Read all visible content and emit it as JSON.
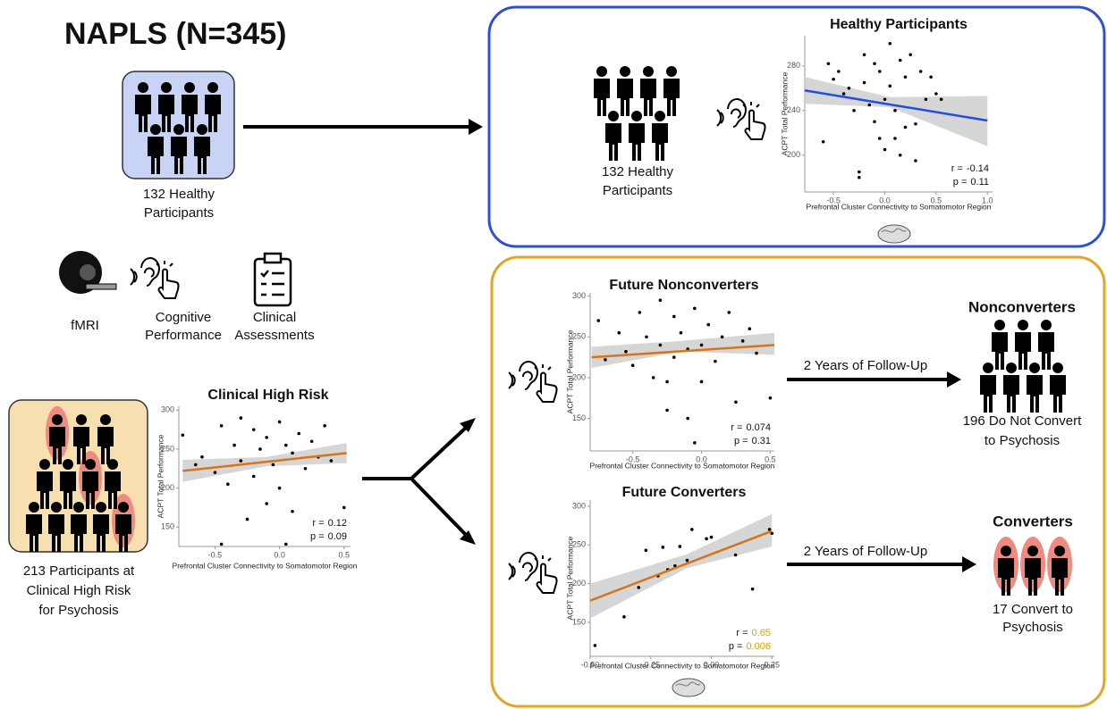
{
  "title": "NAPLS (N=345)",
  "healthy_group": {
    "lines": [
      "132 Healthy",
      "Participants"
    ]
  },
  "modalities": [
    {
      "lines": [
        "fMRI"
      ]
    },
    {
      "lines": [
        "Cognitive",
        "Performance"
      ]
    },
    {
      "lines": [
        "Clinical",
        "Assessments"
      ]
    }
  ],
  "chr_group": {
    "lines": [
      "213 Participants at",
      "Clinical High Risk",
      "for Psychosis"
    ]
  },
  "healthy_panel": {
    "lines": [
      "132 Healthy",
      "Participants"
    ]
  },
  "outcomes": [
    {
      "title": "Nonconverters",
      "arrow_label": "2 Years of Follow-Up",
      "lines": [
        "196 Do Not Convert",
        "to Psychosis"
      ]
    },
    {
      "title": "Converters",
      "arrow_label": "2 Years of Follow-Up",
      "lines": [
        "17 Convert to",
        "Psychosis"
      ]
    }
  ],
  "chart_data": [
    {
      "type": "scatter",
      "title": "Healthy Participants",
      "xlabel": "Prefrontal Cluster Connectivity to Somatomotor Region",
      "ylabel": "ACPT Total Performance",
      "color": "#000000",
      "x": [
        -0.6,
        -0.5,
        -0.45,
        -0.4,
        -0.35,
        -0.3,
        -0.25,
        -0.2,
        -0.2,
        -0.15,
        -0.1,
        -0.1,
        -0.05,
        0,
        0,
        0.05,
        0.05,
        0.1,
        0.1,
        0.15,
        0.2,
        0.2,
        0.25,
        0.3,
        0.35,
        0.4,
        0.45,
        0.5,
        -0.25,
        -0.05,
        0.15,
        0.3,
        0.55,
        -0.55
      ],
      "values": [
        212,
        268,
        275,
        255,
        260,
        240,
        180,
        290,
        265,
        245,
        282,
        230,
        275,
        250,
        205,
        300,
        262,
        240,
        215,
        285,
        270,
        225,
        290,
        195,
        275,
        250,
        270,
        255,
        185,
        215,
        200,
        228,
        250,
        282
      ],
      "fit": {
        "color": "#1f4fe0",
        "x": [
          -0.78,
          1.0
        ],
        "y": [
          258,
          231
        ]
      },
      "ci": {
        "color": "#cccccc",
        "x": [
          -0.78,
          0.05,
          1.0
        ],
        "lower": [
          246,
          243,
          208
        ],
        "upper": [
          270,
          252,
          253
        ]
      },
      "xlim": [
        -0.78,
        1.05
      ],
      "ylim": [
        167,
        307
      ],
      "xticks": [
        -0.5,
        {
          "value": 0,
          "label": "0.0"
        },
        0.5,
        {
          "value": 1,
          "label": "1.0"
        }
      ],
      "yticks": [
        200,
        240,
        280
      ],
      "annotations": [
        {
          "label": "r =",
          "value": "-0.14"
        },
        {
          "label": "p =",
          "value": "0.11"
        }
      ]
    },
    {
      "type": "scatter",
      "title": "Clinical High Risk",
      "xlabel": "Prefrontal Cluster Connectivity to Somatomotor Region",
      "ylabel": "ACPT Total Performance",
      "color": "#000000",
      "x": [
        -0.75,
        -0.65,
        -0.6,
        -0.5,
        -0.45,
        -0.4,
        -0.35,
        -0.3,
        -0.3,
        -0.25,
        -0.2,
        -0.2,
        -0.15,
        -0.1,
        -0.1,
        -0.05,
        0,
        0,
        0.05,
        0.1,
        0.1,
        0.15,
        0.2,
        0.25,
        0.3,
        0.35,
        0.4,
        0.5,
        -0.45,
        0.05
      ],
      "values": [
        268,
        230,
        240,
        220,
        280,
        205,
        255,
        290,
        235,
        160,
        275,
        215,
        250,
        180,
        265,
        230,
        285,
        200,
        255,
        245,
        170,
        270,
        225,
        260,
        240,
        280,
        235,
        175,
        128,
        128
      ],
      "fit": {
        "color": "#d9731a",
        "x": [
          -0.75,
          0.52
        ],
        "y": [
          222,
          245
        ]
      },
      "ci": {
        "color": "#cccccc",
        "x": [
          -0.75,
          -0.1,
          0.52
        ],
        "lower": [
          208,
          228,
          232
        ],
        "upper": [
          236,
          240,
          258
        ]
      },
      "xlim": [
        -0.78,
        0.55
      ],
      "ylim": [
        125,
        305
      ],
      "xticks": [
        -0.5,
        {
          "value": 0,
          "label": "0.0"
        },
        0.5
      ],
      "yticks": [
        150,
        200,
        250,
        300
      ],
      "annotations": [
        {
          "label": "r =",
          "value": "0.12"
        },
        {
          "label": "p =",
          "value": "0.09"
        }
      ]
    },
    {
      "type": "scatter",
      "title": "Future Nonconverters",
      "xlabel": "Prefrontal Cluster Connectivity to Somatomotor Region",
      "ylabel": "ACPT Total Performance",
      "color": "#000000",
      "x": [
        -0.75,
        -0.7,
        -0.6,
        -0.55,
        -0.5,
        -0.45,
        -0.4,
        -0.35,
        -0.3,
        -0.3,
        -0.25,
        -0.2,
        -0.2,
        -0.15,
        -0.1,
        -0.1,
        -0.05,
        0,
        0,
        0.05,
        0.1,
        0.15,
        0.2,
        0.25,
        0.3,
        0.35,
        0.4,
        0.5,
        -0.25,
        -0.05
      ],
      "values": [
        270,
        222,
        255,
        232,
        215,
        280,
        250,
        200,
        295,
        240,
        160,
        275,
        225,
        255,
        150,
        235,
        285,
        240,
        195,
        265,
        220,
        250,
        280,
        170,
        245,
        260,
        230,
        175,
        195,
        120
      ],
      "fit": {
        "color": "#d9731a",
        "x": [
          -0.8,
          0.53
        ],
        "y": [
          225,
          240
        ]
      },
      "ci": {
        "color": "#cccccc",
        "x": [
          -0.8,
          -0.15,
          0.53
        ],
        "lower": [
          212,
          232,
          228
        ],
        "upper": [
          238,
          245,
          255
        ]
      },
      "xlim": [
        -0.81,
        0.53
      ],
      "ylim": [
        110,
        304
      ],
      "xticks": [
        -0.5,
        {
          "value": 0,
          "label": "0.0"
        },
        0.5
      ],
      "yticks": [
        150,
        200,
        250,
        300
      ],
      "annotations": [
        {
          "label": "r =",
          "value": "0.074"
        },
        {
          "label": "p =",
          "value": "0.31"
        }
      ]
    },
    {
      "type": "scatter",
      "title": "Future Converters",
      "xlabel": "Prefrontal Cluster Connectivity to Somatomotor Region",
      "ylabel": "ACPT Total Performance",
      "color": "#000000",
      "x": [
        -0.48,
        -0.36,
        -0.3,
        -0.27,
        -0.22,
        -0.2,
        -0.18,
        -0.15,
        -0.13,
        -0.1,
        -0.08,
        -0.02,
        0.1,
        0.17,
        0.24,
        0.25,
        0.0
      ],
      "values": [
        120,
        157,
        195,
        243,
        210,
        247,
        218,
        223,
        248,
        230,
        270,
        258,
        237,
        193,
        270,
        265,
        260
      ],
      "fit": {
        "color": "#d9731a",
        "x": [
          -0.5,
          0.25
        ],
        "y": [
          178,
          268
        ]
      },
      "ci": {
        "color": "#cccccc",
        "x": [
          -0.5,
          -0.1,
          0.25
        ],
        "lower": [
          155,
          220,
          248
        ],
        "upper": [
          200,
          238,
          290
        ]
      },
      "xlim": [
        -0.5,
        0.26
      ],
      "ylim": [
        106,
        308
      ],
      "xticks": [
        {
          "value": -0.5,
          "label": "-0.50"
        },
        -0.25,
        {
          "value": 0,
          "label": "0.00"
        },
        0.25
      ],
      "yticks": [
        150,
        200,
        250,
        300
      ],
      "annotations": [
        {
          "label": "r =",
          "value": "0.65",
          "value_color": "#e69f00"
        },
        {
          "label": "p =",
          "value": "0.006",
          "value_color": "#e69f00"
        }
      ]
    }
  ]
}
